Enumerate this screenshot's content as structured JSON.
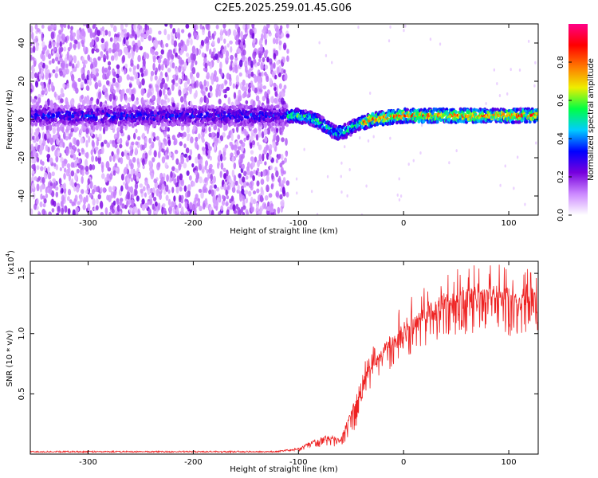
{
  "title": "C2E5.2025.259.01.45.G06",
  "chart_data": [
    {
      "type": "heatmap",
      "xlabel": "Height of straight line (km)",
      "ylabel": "Frequency (Hz)",
      "xlim": [
        -355,
        128
      ],
      "ylim": [
        -50,
        50
      ],
      "xticks": [
        -300,
        -200,
        -100,
        0,
        100
      ],
      "yticks": [
        -40,
        -20,
        0,
        20,
        40
      ],
      "colorbar": {
        "label": "Normalized spectral amplitude",
        "range": [
          0,
          1
        ],
        "ticks": [
          "0.0",
          "0.2",
          "0.4",
          "0.6",
          "0.8"
        ],
        "tick_values": [
          0,
          0.2,
          0.4,
          0.6,
          0.8
        ],
        "colors": [
          "#ffffff",
          "#cc88ff",
          "#7700dd",
          "#0000ff",
          "#00ccff",
          "#00ff44",
          "#eeee00",
          "#ff7700",
          "#ff0000",
          "#ff0088"
        ]
      },
      "ridge": {
        "x": [
          -355,
          -120,
          -100,
          -85,
          -75,
          -65,
          -55,
          -45,
          -30,
          -15,
          0,
          20,
          60,
          128
        ],
        "y": [
          2,
          2,
          2,
          0,
          -3,
          -7,
          -6,
          -3,
          0,
          1,
          2,
          2,
          2,
          2
        ]
      }
    },
    {
      "type": "line",
      "xlabel": "Height of straight line (km)",
      "ylabel": "SNR (10 * v/v)",
      "scale_label": "(x10",
      "scale_exp": "4",
      "scale_close": ")",
      "xlim": [
        -355,
        128
      ],
      "ylim": [
        0,
        1.6
      ],
      "xticks": [
        -300,
        -200,
        -100,
        0,
        100
      ],
      "yticks": [
        0.5,
        1.0,
        1.5
      ],
      "ytick_labels": [
        "0.5",
        "1.0",
        "1.5"
      ],
      "color": "#ee2222",
      "envelope": {
        "x": [
          -355,
          -200,
          -120,
          -100,
          -85,
          -70,
          -60,
          -50,
          -40,
          -30,
          -20,
          -10,
          0,
          10,
          20,
          30,
          40,
          60,
          80,
          100,
          128
        ],
        "y": [
          0.02,
          0.02,
          0.02,
          0.05,
          0.12,
          0.16,
          0.12,
          0.38,
          0.62,
          0.78,
          0.9,
          1.0,
          1.08,
          1.15,
          1.22,
          1.28,
          1.33,
          1.38,
          1.4,
          1.38,
          1.36
        ]
      }
    }
  ]
}
